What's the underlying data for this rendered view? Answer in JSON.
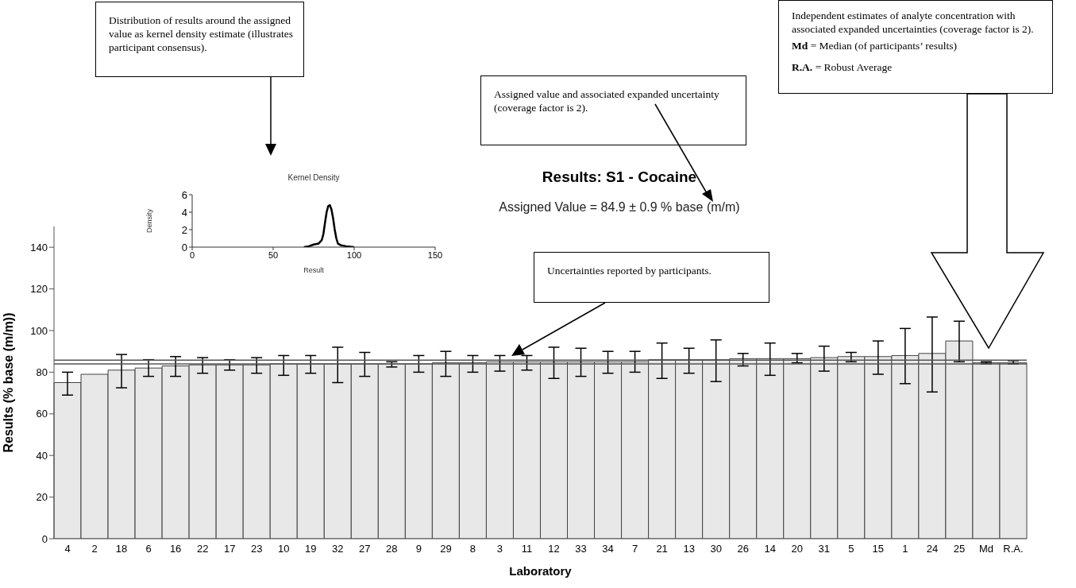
{
  "chart_data": [
    {
      "type": "bar",
      "title": "Results: S1 - Cocaine",
      "subtitle": "Assigned Value = 84.9 ± 0.9 % base (m/m)",
      "xlabel": "Laboratory",
      "ylabel": "Results (% base (m/m))",
      "categories": [
        "4",
        "2",
        "18",
        "6",
        "16",
        "22",
        "17",
        "23",
        "10",
        "19",
        "32",
        "27",
        "28",
        "9",
        "29",
        "8",
        "3",
        "11",
        "12",
        "33",
        "34",
        "7",
        "21",
        "13",
        "30",
        "26",
        "14",
        "20",
        "31",
        "5",
        "15",
        "1",
        "24",
        "25",
        "Md",
        "R.A."
      ],
      "values": [
        75,
        79,
        81,
        82,
        83,
        83.5,
        83.5,
        83.5,
        84,
        84,
        84,
        84,
        84,
        84,
        84.5,
        84.5,
        85,
        85,
        85,
        85,
        85,
        85,
        86,
        86,
        86,
        86.5,
        86.5,
        86.5,
        87,
        87.5,
        87.5,
        88,
        89,
        95,
        84.5,
        84.5
      ],
      "errors": [
        [
          69,
          80
        ],
        null,
        [
          72.5,
          88.5
        ],
        [
          78,
          86
        ],
        [
          78,
          87.5
        ],
        [
          79.5,
          87
        ],
        [
          81,
          86
        ],
        [
          79.5,
          87
        ],
        [
          78.5,
          88
        ],
        [
          79.5,
          88
        ],
        [
          75,
          92
        ],
        [
          78,
          89.5
        ],
        [
          82.5,
          85
        ],
        [
          80,
          88
        ],
        [
          78,
          90
        ],
        [
          80,
          88
        ],
        [
          80.5,
          88
        ],
        [
          81,
          88
        ],
        [
          77,
          92
        ],
        [
          78,
          91.5
        ],
        [
          79.5,
          90
        ],
        [
          80,
          90
        ],
        [
          77,
          94
        ],
        [
          79.5,
          91.5
        ],
        [
          75.5,
          95.5
        ],
        [
          83,
          89
        ],
        [
          78.5,
          94
        ],
        [
          84.5,
          89
        ],
        [
          80.5,
          92.5
        ],
        [
          85,
          89.5
        ],
        [
          79,
          95
        ],
        [
          74.5,
          101
        ],
        [
          70.5,
          106.5
        ],
        [
          85,
          104.5
        ],
        [
          84,
          85
        ],
        [
          84,
          85.5
        ]
      ],
      "color": "#e8e8e8",
      "ylim": [
        0,
        150
      ],
      "yticks": [
        0,
        20,
        40,
        60,
        80,
        100,
        120,
        140
      ],
      "ref_lines": [
        {
          "axis": "y",
          "value": 85.8,
          "color": "#555555"
        },
        {
          "axis": "y",
          "value": 84.0,
          "color": "#555555"
        }
      ],
      "annotations": [
        "Distribution of results around the assigned value as kernel density estimate (illustrates participant consensus).",
        "Assigned value and associated expanded uncertainty (coverage factor is 2).",
        "Uncertainties reported by participants.",
        "Independent estimates of analyte concentration with associated expanded uncertainties (coverage factor is 2).",
        "Md  = Median (of participants’ results)",
        "R.A.  = Robust Average"
      ]
    },
    {
      "type": "line",
      "title": "Kernel Density",
      "xlabel": "Result",
      "ylabel": "Density",
      "color": "#000000",
      "marker": "none",
      "x": [
        69,
        72,
        75,
        78,
        80,
        81,
        82,
        83,
        84,
        85,
        86,
        87,
        88,
        89,
        90,
        92,
        95,
        100
      ],
      "values": [
        0,
        0.1,
        0.3,
        0.4,
        0.8,
        1.5,
        2.8,
        4.0,
        4.7,
        4.8,
        4.3,
        3.3,
        2.0,
        1.0,
        0.4,
        0.2,
        0.1,
        0
      ],
      "xlim": [
        0,
        150
      ],
      "xticks": [
        0,
        50,
        100,
        150
      ],
      "ylim": [
        0,
        6
      ],
      "yticks": [
        0,
        2,
        4,
        6
      ]
    }
  ]
}
